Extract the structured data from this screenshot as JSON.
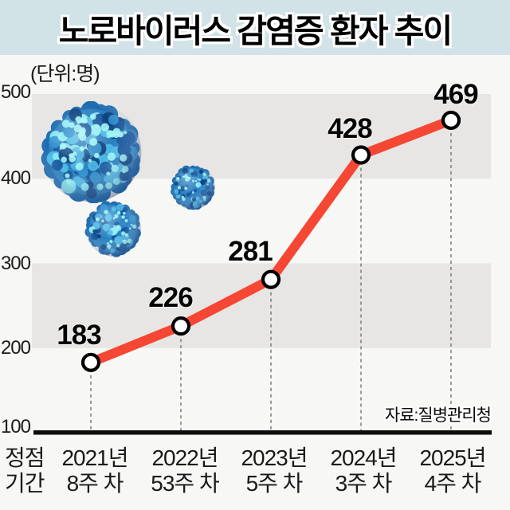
{
  "header": {
    "title": "노로바이러스 감염증 환자 추이"
  },
  "chart": {
    "unit_label": "(단위:명)",
    "source": "자료:질병관리청",
    "corner_label": {
      "line1": "정점",
      "line2": "기간"
    }
  },
  "chart_data": {
    "type": "line",
    "title": "노로바이러스 감염증 환자 추이",
    "unit": "명",
    "categories": [
      "2021년 8주 차",
      "2022년 53주 차",
      "2023년 5주 차",
      "2024년 3주 차",
      "2025년 4주 차"
    ],
    "x_labels": [
      {
        "line1": "2021년",
        "line2": "8주 차"
      },
      {
        "line1": "2022년",
        "line2": "53주 차"
      },
      {
        "line1": "2023년",
        "line2": "5주 차"
      },
      {
        "line1": "2024년",
        "line2": "3주 차"
      },
      {
        "line1": "2025년",
        "line2": "4주 차"
      }
    ],
    "values": [
      183,
      226,
      281,
      428,
      469
    ],
    "y_ticks": [
      500,
      400,
      300,
      200,
      100
    ],
    "ylim": [
      100,
      500
    ],
    "xlabel": "정점 기간",
    "ylabel": "명",
    "grid": "alternating horizontal gray bands (500-400, 300-200)",
    "legend": "none",
    "marker": "white-circle-black-ring",
    "source": "자료:질병관리청"
  },
  "colors": {
    "header_bg": "#d2e3e8",
    "page_bg": "#f7f7f5",
    "band": "#e7e6e4",
    "line": "#f54733",
    "axis": "#0c0c0c",
    "dash": "#838383",
    "virus_base": "#2a7fc0"
  },
  "images": [
    {
      "name": "norovirus-particle-large"
    },
    {
      "name": "norovirus-particle-medium"
    },
    {
      "name": "norovirus-particle-small"
    }
  ]
}
